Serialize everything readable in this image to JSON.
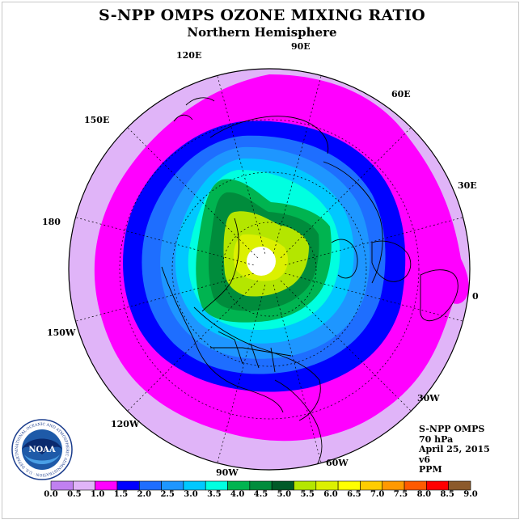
{
  "title": "S-NPP OMPS OZONE MIXING RATIO",
  "subtitle": "Northern Hemisphere",
  "longitude_labels": [
    "90E",
    "60E",
    "30E",
    "0",
    "30W",
    "60W",
    "90W",
    "120W",
    "150W",
    "180",
    "150E",
    "120E"
  ],
  "info": {
    "instrument": "S-NPP OMPS",
    "level": "70 hPa",
    "date": "April 25, 2015",
    "version": "v6",
    "units": "PPM"
  },
  "logo": {
    "text": "NOAA",
    "ring_text": "NATIONAL OCEANIC AND ATMOSPHERIC ADMINISTRATION · U.S. DEPARTMENT OF COMMERCE",
    "icon": "noaa-seal-icon"
  },
  "colorbar": {
    "ticks": [
      "0.0",
      "0.5",
      "1.0",
      "1.5",
      "2.0",
      "2.5",
      "3.0",
      "3.5",
      "4.0",
      "4.5",
      "5.0",
      "5.5",
      "6.0",
      "6.5",
      "7.0",
      "7.5",
      "8.0",
      "8.5",
      "9.0"
    ],
    "colors": [
      "#c080f0",
      "#e0b4f8",
      "#ff00ff",
      "#0000ff",
      "#1e6eff",
      "#1e96ff",
      "#00c8ff",
      "#00ffe0",
      "#00b450",
      "#008c3c",
      "#005a28",
      "#b4e600",
      "#dcf000",
      "#ffff00",
      "#ffcc00",
      "#ff9900",
      "#ff5a00",
      "#ff0000",
      "#8b5a2b"
    ]
  }
}
